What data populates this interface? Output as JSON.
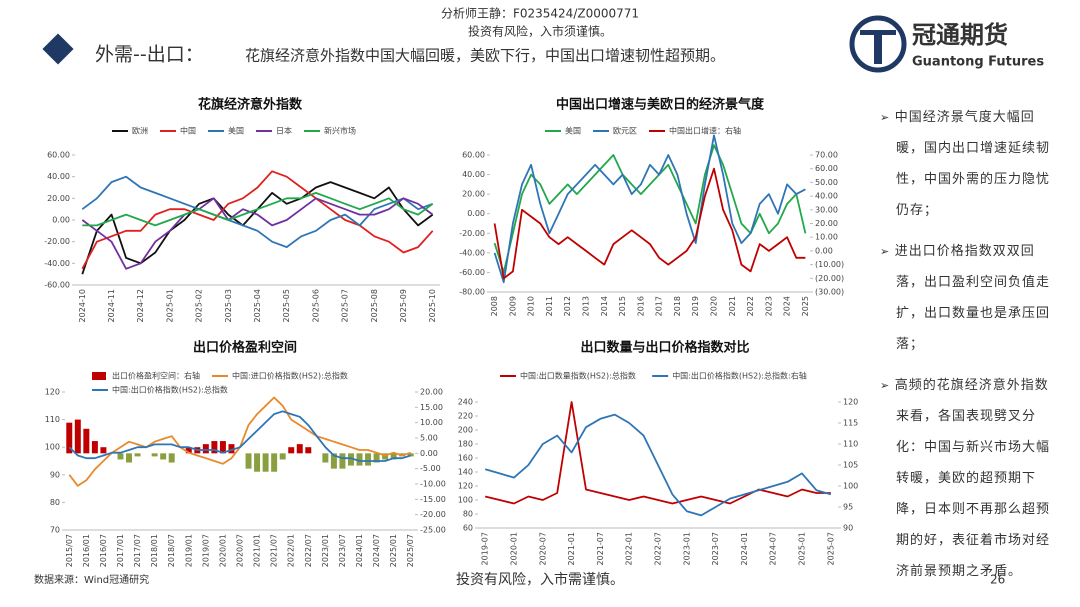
{
  "header": {
    "analyst": "分析师王静：F0235424/Z0000771",
    "risk": "投资有风险，入市须谨慎。",
    "title_prefix": "外需--出口：",
    "title": "花旗经济意外指数中国大幅回暖，美欧下行，中国出口增速韧性超预期。"
  },
  "logo": {
    "name": "冠通期货",
    "english": "Guantong Futures"
  },
  "bullets": [
    "中国经济景气度大幅回暖，国内出口增速延续韧性，中国外需的压力隐忧仍存；",
    "进出口价格指数双双回落，出口盈利空间负值走扩，出口数量也是承压回落；",
    "高频的花旗经济意外指数来看，各国表现劈叉分化：中国与新兴市场大幅转暖，美欧的超预期下降，日本则不再那么超预期的好，表征着市场对经济前景预期之矛盾。"
  ],
  "footer": {
    "source": "数据来源：Wind冠通研究",
    "risk": "投资有风险，入市需谨慎。",
    "page": "26"
  },
  "chart_data": [
    {
      "type": "line",
      "title": "花旗经济意外指数",
      "categories": [
        "2024-10",
        null,
        "2024-11",
        null,
        "2024-12",
        null,
        "2025-01",
        null,
        "2025-02",
        null,
        "2025-03",
        null,
        "2025-04",
        null,
        "2025-05",
        null,
        "2025-06",
        null,
        "2025-07",
        null,
        "2025-08",
        null,
        "2025-09",
        null,
        "2025-10"
      ],
      "ylim": [
        -60,
        60
      ],
      "yticks": [
        {
          "value": 60,
          "label": "60.00"
        },
        {
          "value": 40,
          "label": "40.00"
        },
        {
          "value": 20,
          "label": "20.00"
        },
        {
          "value": 0,
          "label": "0.00"
        },
        {
          "value": -20,
          "label": "-20.00"
        },
        {
          "value": -40,
          "label": "-40.00"
        },
        {
          "value": -60,
          "label": "-60.00"
        }
      ],
      "series": [
        {
          "name": "欧洲",
          "color": "#111111",
          "values": [
            -50,
            -10,
            5,
            -35,
            -40,
            -30,
            -10,
            0,
            15,
            20,
            5,
            -5,
            10,
            25,
            15,
            20,
            30,
            35,
            30,
            25,
            20,
            30,
            10,
            -5,
            5
          ]
        },
        {
          "name": "中国",
          "color": "#e02020",
          "values": [
            -45,
            -20,
            -15,
            -10,
            -10,
            5,
            10,
            10,
            5,
            0,
            15,
            20,
            30,
            45,
            40,
            30,
            20,
            10,
            0,
            -5,
            -15,
            -20,
            -30,
            -25,
            -10
          ]
        },
        {
          "name": "美国",
          "color": "#2e75b6",
          "values": [
            10,
            20,
            35,
            40,
            30,
            25,
            20,
            15,
            10,
            5,
            0,
            -5,
            -10,
            -20,
            -25,
            -15,
            -10,
            0,
            5,
            -5,
            10,
            15,
            20,
            10,
            15
          ]
        },
        {
          "name": "日本",
          "color": "#7030a0",
          "values": [
            0,
            -10,
            -20,
            -45,
            -40,
            -20,
            -10,
            5,
            10,
            20,
            0,
            10,
            5,
            -5,
            0,
            10,
            20,
            15,
            10,
            5,
            5,
            10,
            20,
            15,
            5
          ]
        },
        {
          "name": "新兴市场",
          "color": "#22a84a",
          "values": [
            -5,
            -5,
            0,
            5,
            0,
            -5,
            0,
            5,
            10,
            5,
            0,
            5,
            10,
            15,
            20,
            20,
            25,
            20,
            15,
            10,
            15,
            20,
            10,
            5,
            15
          ]
        }
      ]
    },
    {
      "type": "line",
      "title": "中国出口增速与美欧日的经济景气度",
      "categories": [
        "2008",
        null,
        "2009",
        null,
        "2010",
        null,
        "2011",
        null,
        "2012",
        null,
        "2013",
        null,
        "2014",
        null,
        "2015",
        null,
        "2016",
        null,
        "2017",
        null,
        "2018",
        null,
        "2019",
        null,
        "2020",
        null,
        "2021",
        null,
        "2022",
        null,
        "2023",
        null,
        "2024",
        null,
        "2025"
      ],
      "ylim": [
        -80,
        60
      ],
      "yticks": [
        {
          "value": 60,
          "label": "60.00"
        },
        {
          "value": 40,
          "label": "40.00"
        },
        {
          "value": 20,
          "label": "20.00"
        },
        {
          "value": 0,
          "label": "0.00"
        },
        {
          "value": -20,
          "label": "-20.00"
        },
        {
          "value": -40,
          "label": "-40.00"
        },
        {
          "value": -60,
          "label": "-60.00"
        },
        {
          "value": -80,
          "label": "-80.00"
        }
      ],
      "y2lim": [
        -30,
        70
      ],
      "y2ticks": [
        {
          "value": 70,
          "label": "70.00"
        },
        {
          "value": 60,
          "label": "60.00"
        },
        {
          "value": 50,
          "label": "50.00"
        },
        {
          "value": 40,
          "label": "40.00"
        },
        {
          "value": 30,
          "label": "30.00"
        },
        {
          "value": 20,
          "label": "20.00"
        },
        {
          "value": 10,
          "label": "10.00"
        },
        {
          "value": 0,
          "label": "0.00"
        },
        {
          "value": -10,
          "label": "(10.00)"
        },
        {
          "value": -20,
          "label": "(20.00)"
        },
        {
          "value": -30,
          "label": "(30.00)"
        }
      ],
      "series": [
        {
          "name": "美国",
          "color": "#22a84a",
          "values": [
            -30,
            -60,
            -20,
            20,
            40,
            30,
            10,
            20,
            30,
            20,
            30,
            40,
            50,
            60,
            40,
            30,
            20,
            30,
            40,
            50,
            30,
            10,
            -10,
            40,
            70,
            50,
            20,
            -10,
            -20,
            0,
            -20,
            -10,
            10,
            20,
            -20
          ]
        },
        {
          "name": "欧元区",
          "color": "#2e75b6",
          "values": [
            -40,
            -70,
            -10,
            30,
            50,
            10,
            -20,
            0,
            20,
            30,
            40,
            50,
            40,
            30,
            40,
            20,
            30,
            50,
            40,
            60,
            40,
            0,
            -30,
            30,
            80,
            40,
            -10,
            -30,
            -20,
            10,
            20,
            0,
            30,
            20,
            25
          ]
        },
        {
          "name": "中国出口增速：右轴",
          "color": "#c00000",
          "axis": "y2",
          "values": [
            20,
            -20,
            -15,
            30,
            25,
            20,
            10,
            5,
            10,
            5,
            0,
            -5,
            -10,
            5,
            10,
            15,
            10,
            5,
            -5,
            -10,
            -5,
            0,
            10,
            40,
            60,
            30,
            15,
            -10,
            -15,
            5,
            0,
            5,
            10,
            -5,
            -5
          ]
        }
      ]
    },
    {
      "type": "combo",
      "title": "出口价格盈利空间",
      "categories": [
        "2015/07",
        null,
        "2016/01",
        null,
        "2016/07",
        null,
        "2017/01",
        null,
        "2017/07",
        null,
        "2018/01",
        null,
        "2018/07",
        null,
        "2019/01",
        null,
        "2019/07",
        null,
        "2020/01",
        null,
        "2020/07",
        null,
        "2021/01",
        null,
        "2021/07",
        null,
        "2022/01",
        null,
        "2022/07",
        null,
        "2023/01",
        null,
        "2023/07",
        null,
        "2024/01",
        null,
        "2024/07",
        null,
        "2025/01",
        null,
        "2025/07"
      ],
      "ylim": [
        70,
        120
      ],
      "yticks": [
        70,
        80,
        90,
        100,
        110,
        120
      ],
      "y2lim": [
        -25,
        20
      ],
      "y2ticks": [
        {
          "value": 20,
          "label": "20.00"
        },
        {
          "value": 15,
          "label": "15.00"
        },
        {
          "value": 10,
          "label": "10.00"
        },
        {
          "value": 5,
          "label": "5.00"
        },
        {
          "value": 0,
          "label": "0.00"
        },
        {
          "value": -5,
          "label": "-5.00"
        },
        {
          "value": -10,
          "label": "-10.00"
        },
        {
          "value": -15,
          "label": "-15.00"
        },
        {
          "value": -20,
          "label": "-20.00"
        },
        {
          "value": -25,
          "label": "-25.00"
        }
      ],
      "series": [
        {
          "name": "出口价格盈利空间：右轴",
          "type": "bar",
          "axis": "y2",
          "color": "#c00000",
          "negative_color": "#8aa040",
          "values": [
            10,
            11,
            8,
            4,
            2,
            0,
            -2,
            -3,
            -1,
            0,
            -1,
            -2,
            -3,
            0,
            2,
            2,
            3,
            4,
            4,
            3,
            0,
            -5,
            -6,
            -6,
            -6,
            -2,
            2,
            3,
            2,
            0,
            -3,
            -5,
            -5,
            -4,
            -4,
            -4,
            -3,
            -2,
            -2,
            -1,
            -1
          ]
        },
        {
          "name": "中国:进口价格指数(HS2):总指数",
          "color": "#e8892b",
          "values": [
            90,
            86,
            88,
            92,
            95,
            98,
            100,
            102,
            101,
            100,
            102,
            103,
            104,
            100,
            98,
            97,
            96,
            95,
            94,
            96,
            100,
            108,
            112,
            115,
            118,
            115,
            110,
            108,
            106,
            104,
            103,
            102,
            101,
            100,
            99,
            99,
            98,
            97,
            98,
            97,
            98
          ]
        },
        {
          "name": "中国:出口价格指数(HS2):总指数",
          "color": "#2e75b6",
          "values": [
            100,
            97,
            96,
            96,
            97,
            98,
            98,
            99,
            100,
            100,
            101,
            101,
            101,
            100,
            100,
            99,
            99,
            99,
            98,
            99,
            100,
            103,
            106,
            109,
            112,
            113,
            112,
            111,
            108,
            104,
            100,
            97,
            96,
            96,
            95,
            95,
            95,
            95,
            96,
            96,
            97
          ]
        }
      ]
    },
    {
      "type": "line",
      "title": "出口数量与出口价格指数对比",
      "categories": [
        "2019-07",
        null,
        "2020-01",
        null,
        "2020-07",
        null,
        "2021-01",
        null,
        "2021-07",
        null,
        "2022-01",
        null,
        "2022-07",
        null,
        "2023-01",
        null,
        "2023-07",
        null,
        "2024-01",
        null,
        "2024-07",
        null,
        "2025-01",
        null,
        "2025-07"
      ],
      "ylim": [
        60,
        240
      ],
      "yticks": [
        60,
        80,
        100,
        120,
        140,
        160,
        180,
        200,
        220,
        240
      ],
      "y2lim": [
        90,
        120
      ],
      "y2ticks": [
        90,
        95,
        100,
        105,
        110,
        115,
        120
      ],
      "series": [
        {
          "name": "中国:出口数量指数(HS2):总指数",
          "color": "#c00000",
          "values": [
            105,
            100,
            95,
            105,
            100,
            110,
            240,
            115,
            110,
            105,
            100,
            105,
            100,
            95,
            100,
            105,
            100,
            95,
            105,
            115,
            110,
            105,
            115,
            110,
            110
          ]
        },
        {
          "name": "中国:出口价格指数(HS2):总指数:右轴",
          "color": "#2e75b6",
          "axis": "y2",
          "values": [
            104,
            103,
            102,
            105,
            110,
            112,
            108,
            114,
            116,
            117,
            115,
            112,
            105,
            98,
            94,
            93,
            95,
            97,
            98,
            99,
            100,
            101,
            103,
            99,
            98
          ]
        }
      ]
    }
  ]
}
